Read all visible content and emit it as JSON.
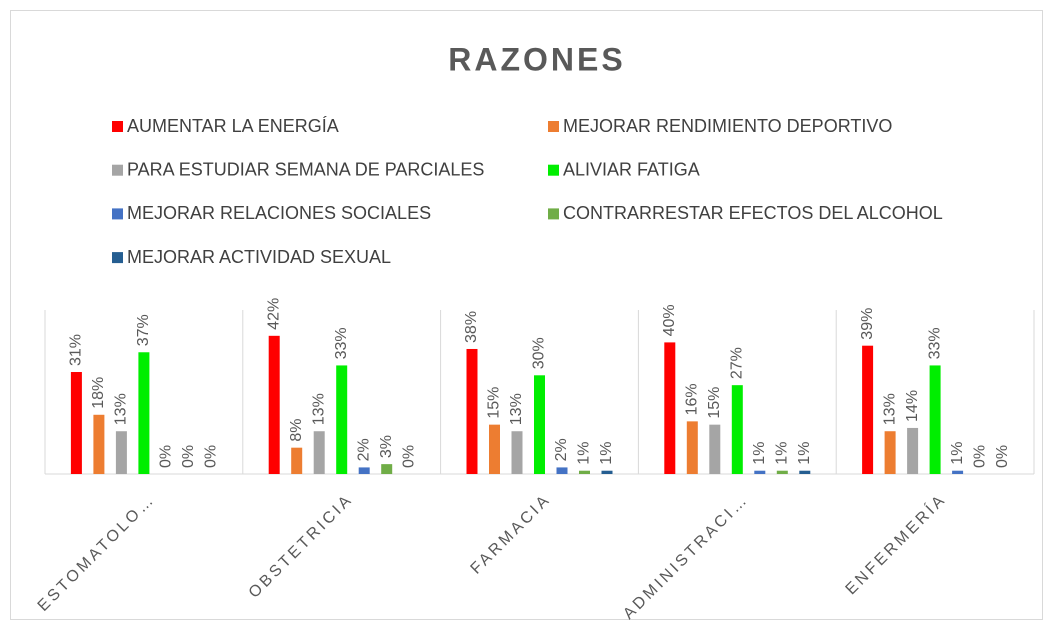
{
  "chart_data": {
    "type": "bar",
    "title": "RAZONES",
    "categories": [
      "ESTOMATOLO…",
      "OBSTETRICIA",
      "FARMACIA",
      "ADMINISTRACI…",
      "ENFERMERÍA"
    ],
    "series": [
      {
        "name": "AUMENTAR  LA ENERGÍA",
        "color": "#ff0000",
        "values": [
          31,
          42,
          38,
          40,
          39
        ],
        "value_labels": [
          "31%",
          "42%",
          "38%",
          "40%",
          "39%"
        ]
      },
      {
        "name": "MEJORAR  RENDIMIENTO DEPORTIVO",
        "color": "#ed7d31",
        "values": [
          18,
          8,
          15,
          16,
          13
        ],
        "value_labels": [
          "18%",
          "8%",
          "15%",
          "16%",
          "13%"
        ]
      },
      {
        "name": "PARA ESTUDIAR SEMANA DE PARCIALES",
        "color": "#a5a5a5",
        "values": [
          13,
          13,
          13,
          15,
          14
        ],
        "value_labels": [
          "13%",
          "13%",
          "13%",
          "15%",
          "14%"
        ]
      },
      {
        "name": "ALIVIAR  FATIGA",
        "color": "#00ee00",
        "values": [
          37,
          33,
          30,
          27,
          33
        ],
        "value_labels": [
          "37%",
          "33%",
          "30%",
          "27%",
          "33%"
        ]
      },
      {
        "name": "MEJORAR RELACIONES SOCIALES",
        "color": "#4472c4",
        "values": [
          0,
          2,
          2,
          1,
          1
        ],
        "value_labels": [
          "0%",
          "2%",
          "2%",
          "1%",
          "1%"
        ]
      },
      {
        "name": "CONTRARRESTAR  EFECTOS DEL ALCOHOL",
        "color": "#70ad47",
        "values": [
          0,
          3,
          1,
          1,
          0
        ],
        "value_labels": [
          "0%",
          "3%",
          "1%",
          "1%",
          "0%"
        ]
      },
      {
        "name": "MEJORAR ACTIVIDAD SEXUAL",
        "color": "#255e91",
        "values": [
          0,
          0,
          1,
          1,
          0
        ],
        "value_labels": [
          "0%",
          "0%",
          "1%",
          "1%",
          "0%"
        ]
      }
    ]
  }
}
